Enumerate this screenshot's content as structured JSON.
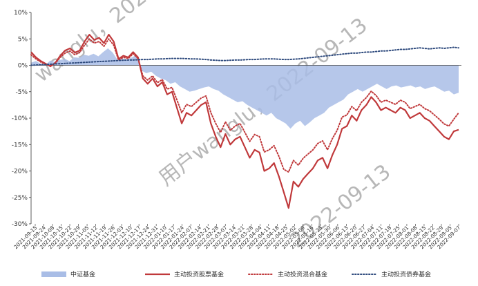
{
  "chart_data": {
    "type": "line",
    "title": "",
    "xlabel": "",
    "ylabel": "",
    "ylim": [
      -30,
      10
    ],
    "y_ticks": [
      "10%",
      "5%",
      "0%",
      "-5%",
      "-10%",
      "-15%",
      "-20%",
      "-25%",
      "-30%"
    ],
    "y_tick_values": [
      10,
      5,
      0,
      -5,
      -10,
      -15,
      -20,
      -25,
      -30
    ],
    "grid": false,
    "legend_position": "bottom",
    "x_tick_labels": [
      "2021-09-15",
      "2021-09-24",
      "2021-10-08",
      "2021-10-15",
      "2021-10-22",
      "2021-10-29",
      "2021-11-05",
      "2021-11-12",
      "2021-11-19",
      "2021-11-26",
      "2021-12-03",
      "2021-12-10",
      "2021-12-17",
      "2021-12-24",
      "2021-12-31",
      "2022-01-07",
      "2022-01-14",
      "2022-01-21",
      "2022-01-28",
      "2022-02-11",
      "2022-02-18",
      "2022-02-25",
      "2022-03-04",
      "2022-03-11",
      "2022-03-18",
      "2022-03-25",
      "2022-04-01",
      "2022-04-08",
      "2022-04-15",
      "2022-04-22",
      "2022-04-29",
      "2022-05-06",
      "2022-05-13",
      "2022-05-20",
      "2022-05-27",
      "2022-06-03",
      "2022-06-10",
      "2022-06-17",
      "2022-06-24",
      "2022-07-01",
      "2022-07-08",
      "2022-07-15",
      "2022-07-22",
      "2022-07-29",
      "2022-08-05",
      "2022-08-12",
      "2022-08-19",
      "2022-08-26",
      "2022-09-02",
      "2022-09-07"
    ],
    "x_tick_labels_shown": [
      "2021-09-15",
      "2021-09-24",
      "2021-10-08",
      "2021-10-15",
      "2021-10-22",
      "2021-10-29",
      "2021-11-05",
      "2021-11-12",
      "2021-11-19",
      "2021-11-26",
      "2021-12-03",
      "2021-12-10",
      "2021-12-17",
      "2021-12-24",
      "2021-12-31",
      "2022-01-10",
      "2022-01-17",
      "2022-01-24",
      "2022-02-07",
      "2022-02-14",
      "2022-02-21",
      "2022-02-28",
      "2022-03-07",
      "2022-03-14",
      "2022-03-21",
      "2022-03-28",
      "2022-04-04",
      "2022-04-11",
      "2022-04-18",
      "2022-04-25",
      "2022-05-02",
      "2022-05-09",
      "2022-05-16",
      "2022-05-23",
      "2022-05-30",
      "2022-06-06",
      "2022-06-13",
      "2022-06-20",
      "2022-06-27",
      "2022-07-04",
      "2022-07-11",
      "2022-07-18",
      "2022-07-25",
      "2022-08-01",
      "2022-08-08",
      "2022-08-15",
      "2022-08-22",
      "2022-08-29",
      "2022-09-05",
      "2022-09-07"
    ],
    "series": [
      {
        "name": "中证基金",
        "style": "area",
        "color": "#a9bde6",
        "values": [
          0.5,
          0.8,
          0.3,
          0.1,
          0.9,
          0.6,
          1.0,
          1.2,
          0.8,
          1.5,
          1.4,
          2.0,
          1.8,
          2.2,
          1.7,
          2.5,
          3.2,
          2.4,
          1.0,
          1.3,
          1.1,
          1.5,
          2.0,
          -1.0,
          -1.5,
          -1.2,
          -2.0,
          -2.5,
          -2.8,
          -3.5,
          -3.2,
          -4.0,
          -4.5,
          -5.0,
          -4.8,
          -4.5,
          -4.2,
          -4.0,
          -4.5,
          -4.8,
          -5.5,
          -6.0,
          -6.5,
          -7.0,
          -6.8,
          -7.5,
          -8.0,
          -8.5,
          -9.0,
          -9.5,
          -9.0,
          -10.0,
          -10.5,
          -11.0,
          -12.0,
          -11.0,
          -10.5,
          -11.5,
          -10.8,
          -10.0,
          -9.5,
          -9.0,
          -8.0,
          -7.5,
          -7.0,
          -6.5,
          -5.5,
          -5.0,
          -4.5,
          -5.0,
          -4.5,
          -4.0,
          -3.5,
          -4.0,
          -4.5,
          -4.0,
          -3.8,
          -4.2,
          -4.0,
          -3.8,
          -4.2,
          -4.0,
          -4.5,
          -4.2,
          -4.0,
          -4.5,
          -5.0,
          -4.8,
          -5.5,
          -5.2
        ]
      },
      {
        "name": "主动投资股票基金",
        "style": "solid",
        "color": "#c0393b",
        "values": [
          2.5,
          1.5,
          0.8,
          0.3,
          -0.2,
          0.5,
          1.8,
          2.8,
          3.2,
          2.4,
          2.8,
          4.5,
          5.8,
          4.8,
          5.2,
          4.2,
          5.8,
          4.5,
          1.2,
          1.8,
          1.5,
          2.5,
          1.5,
          -2.5,
          -3.5,
          -2.5,
          -4.0,
          -3.2,
          -5.5,
          -5.0,
          -8.0,
          -11.0,
          -9.0,
          -9.5,
          -8.5,
          -7.5,
          -7.0,
          -11.0,
          -13.5,
          -15.5,
          -13.0,
          -15.0,
          -14.0,
          -13.5,
          -15.5,
          -17.5,
          -16.0,
          -16.5,
          -20.0,
          -19.5,
          -18.5,
          -21.0,
          -24.0,
          -27.0,
          -22.0,
          -23.0,
          -21.5,
          -20.5,
          -19.5,
          -18.0,
          -17.5,
          -19.5,
          -17.0,
          -15.0,
          -12.0,
          -11.5,
          -9.5,
          -10.5,
          -8.5,
          -7.5,
          -6.0,
          -7.0,
          -8.5,
          -8.0,
          -8.5,
          -9.0,
          -8.0,
          -8.5,
          -10.0,
          -9.5,
          -9.0,
          -10.0,
          -10.5,
          -11.5,
          -12.5,
          -13.5,
          -14.0,
          -12.5,
          -12.2
        ]
      },
      {
        "name": "主动投资混合基金",
        "style": "dotted",
        "color": "#c0393b",
        "values": [
          2.0,
          1.2,
          0.6,
          0.2,
          -0.1,
          0.4,
          1.5,
          2.3,
          2.7,
          2.0,
          2.4,
          3.8,
          5.0,
          4.2,
          4.5,
          3.6,
          5.0,
          3.8,
          1.0,
          1.5,
          1.3,
          2.2,
          1.3,
          -2.0,
          -2.8,
          -2.0,
          -3.3,
          -2.7,
          -4.5,
          -4.2,
          -6.5,
          -9.0,
          -7.4,
          -7.8,
          -7.0,
          -6.2,
          -5.8,
          -9.0,
          -11.0,
          -12.7,
          -10.7,
          -12.3,
          -11.5,
          -11.0,
          -12.7,
          -14.4,
          -13.1,
          -13.5,
          -16.4,
          -16.0,
          -15.2,
          -17.2,
          -19.7,
          -20.2,
          -18.0,
          -18.9,
          -17.6,
          -16.8,
          -16.0,
          -14.8,
          -14.3,
          -16.0,
          -13.9,
          -12.3,
          -9.8,
          -9.4,
          -7.8,
          -8.6,
          -7.0,
          -6.1,
          -4.9,
          -5.7,
          -7.0,
          -6.6,
          -7.0,
          -7.4,
          -6.6,
          -7.0,
          -8.2,
          -7.8,
          -7.4,
          -8.2,
          -8.6,
          -9.4,
          -10.2,
          -11.1,
          -11.5,
          -10.2,
          -9.0
        ]
      },
      {
        "name": "主动投资债券基金",
        "style": "dotted",
        "color": "#2e4a7d",
        "values": [
          0.0,
          0.05,
          0.1,
          0.15,
          0.2,
          0.25,
          0.3,
          0.35,
          0.4,
          0.45,
          0.5,
          0.55,
          0.6,
          0.65,
          0.7,
          0.75,
          0.8,
          0.85,
          0.9,
          0.95,
          1.0,
          1.0,
          1.05,
          1.1,
          1.1,
          1.15,
          1.2,
          1.2,
          1.25,
          1.3,
          1.3,
          1.3,
          1.25,
          1.2,
          1.2,
          1.15,
          1.1,
          1.0,
          0.95,
          0.9,
          0.9,
          0.95,
          1.0,
          1.0,
          1.05,
          1.1,
          1.1,
          1.15,
          1.2,
          1.2,
          1.2,
          1.15,
          1.1,
          1.1,
          1.15,
          1.2,
          1.3,
          1.4,
          1.5,
          1.6,
          1.7,
          1.8,
          1.9,
          2.0,
          2.1,
          2.2,
          2.3,
          2.3,
          2.4,
          2.5,
          2.5,
          2.6,
          2.7,
          2.7,
          2.8,
          2.9,
          3.0,
          3.0,
          3.1,
          3.2,
          3.3,
          3.2,
          3.1,
          3.2,
          3.3,
          3.2,
          3.3,
          3.4,
          3.3
        ]
      }
    ]
  },
  "watermark_text": [
    "wanglu，2022-09-13",
    "用户wanglu，2022-09-13",
    "2022-09-13"
  ]
}
